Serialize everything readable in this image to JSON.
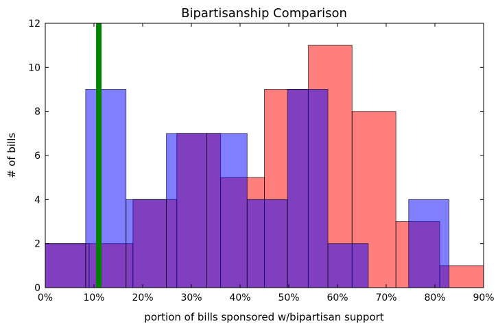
{
  "chart_data": {
    "type": "bar",
    "title": "Bipartisanship Comparison",
    "xlabel": "portion of bills sponsored w/bipartisan support",
    "ylabel": "# of bills",
    "xlim": [
      0,
      0.9
    ],
    "ylim": [
      0,
      12
    ],
    "x_ticks": [
      "0%",
      "10%",
      "20%",
      "30%",
      "40%",
      "50%",
      "60%",
      "70%",
      "80%",
      "90%"
    ],
    "y_ticks": [
      "0",
      "2",
      "4",
      "6",
      "8",
      "10",
      "12"
    ],
    "grid": false,
    "legend": "none",
    "series": [
      {
        "color": "#ff0000",
        "opacity": 0.5,
        "bins": [
          {
            "x0": 0.0,
            "x1": 0.09,
            "count": 2
          },
          {
            "x0": 0.09,
            "x1": 0.18,
            "count": 2
          },
          {
            "x0": 0.18,
            "x1": 0.27,
            "count": 4
          },
          {
            "x0": 0.27,
            "x1": 0.36,
            "count": 7
          },
          {
            "x0": 0.36,
            "x1": 0.45,
            "count": 5
          },
          {
            "x0": 0.45,
            "x1": 0.54,
            "count": 9
          },
          {
            "x0": 0.54,
            "x1": 0.63,
            "count": 11
          },
          {
            "x0": 0.63,
            "x1": 0.72,
            "count": 8
          },
          {
            "x0": 0.72,
            "x1": 0.81,
            "count": 3
          },
          {
            "x0": 0.81,
            "x1": 0.9,
            "count": 1
          }
        ]
      },
      {
        "color": "#0000ff",
        "opacity": 0.5,
        "bins": [
          {
            "x0": 0.0,
            "x1": 0.0829,
            "count": 2
          },
          {
            "x0": 0.0829,
            "x1": 0.1658,
            "count": 9
          },
          {
            "x0": 0.1658,
            "x1": 0.2487,
            "count": 4
          },
          {
            "x0": 0.2487,
            "x1": 0.3316,
            "count": 7
          },
          {
            "x0": 0.3316,
            "x1": 0.4145,
            "count": 7
          },
          {
            "x0": 0.4145,
            "x1": 0.4974,
            "count": 4
          },
          {
            "x0": 0.4974,
            "x1": 0.5803,
            "count": 9
          },
          {
            "x0": 0.5803,
            "x1": 0.6632,
            "count": 2
          },
          {
            "x0": 0.6632,
            "x1": 0.7461,
            "count": 0
          },
          {
            "x0": 0.7461,
            "x1": 0.829,
            "count": 4
          }
        ]
      }
    ],
    "reference_line": {
      "x": 0.11,
      "color": "#008000"
    }
  }
}
